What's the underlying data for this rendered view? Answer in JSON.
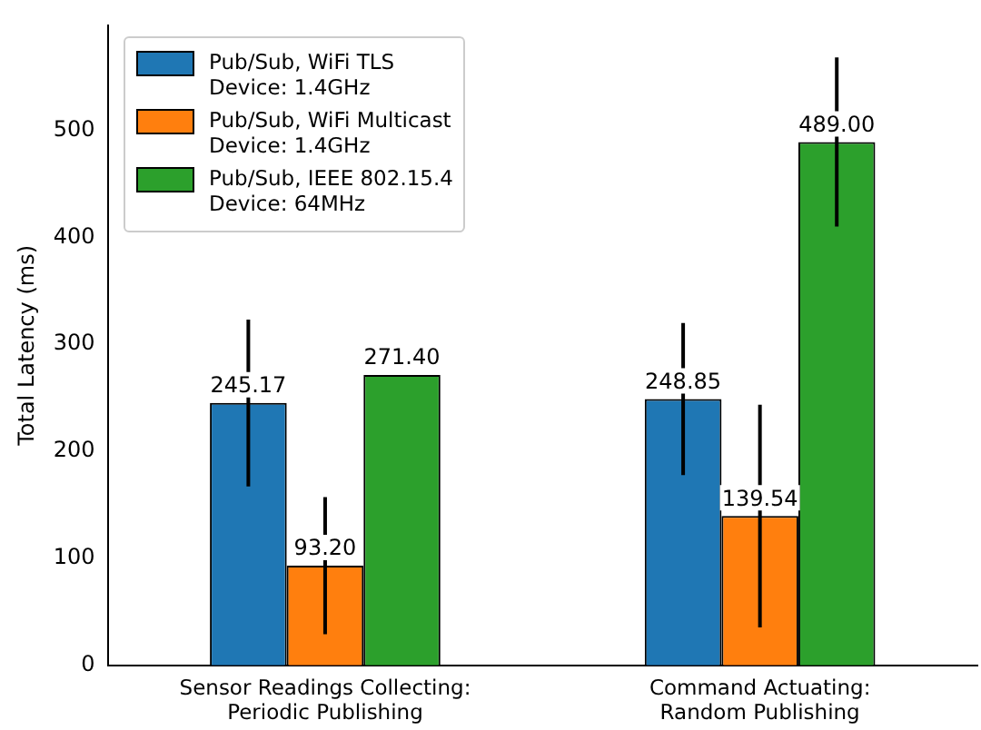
{
  "chart_data": {
    "type": "bar",
    "ylabel": "Total Latency (ms)",
    "categories": [
      "Sensor Readings Collecting:\nPeriodic Publishing",
      "Command Actuating:\nRandom Publishing"
    ],
    "series": [
      {
        "name": "Pub/Sub, WiFi TLS\nDevice: 1.4GHz",
        "color": "#1f77b4",
        "values": [
          245.17,
          248.85
        ],
        "value_labels": [
          "245.17",
          "248.85"
        ],
        "errors": [
          78,
          71
        ]
      },
      {
        "name": "Pub/Sub, WiFi Multicast\nDevice: 1.4GHz",
        "color": "#ff7f0e",
        "values": [
          93.2,
          139.54
        ],
        "value_labels": [
          "93.20",
          "139.54"
        ],
        "errors": [
          64,
          104
        ]
      },
      {
        "name": "Pub/Sub, IEEE 802.15.4\nDevice: 64MHz",
        "color": "#2ca02c",
        "values": [
          271.4,
          489.0
        ],
        "value_labels": [
          "271.40",
          "489.00"
        ],
        "errors": [
          null,
          79
        ]
      }
    ],
    "ylim": [
      0,
      598
    ],
    "yticks": [
      0,
      100,
      200,
      300,
      400,
      500
    ],
    "grid": false,
    "legend": "top left"
  }
}
